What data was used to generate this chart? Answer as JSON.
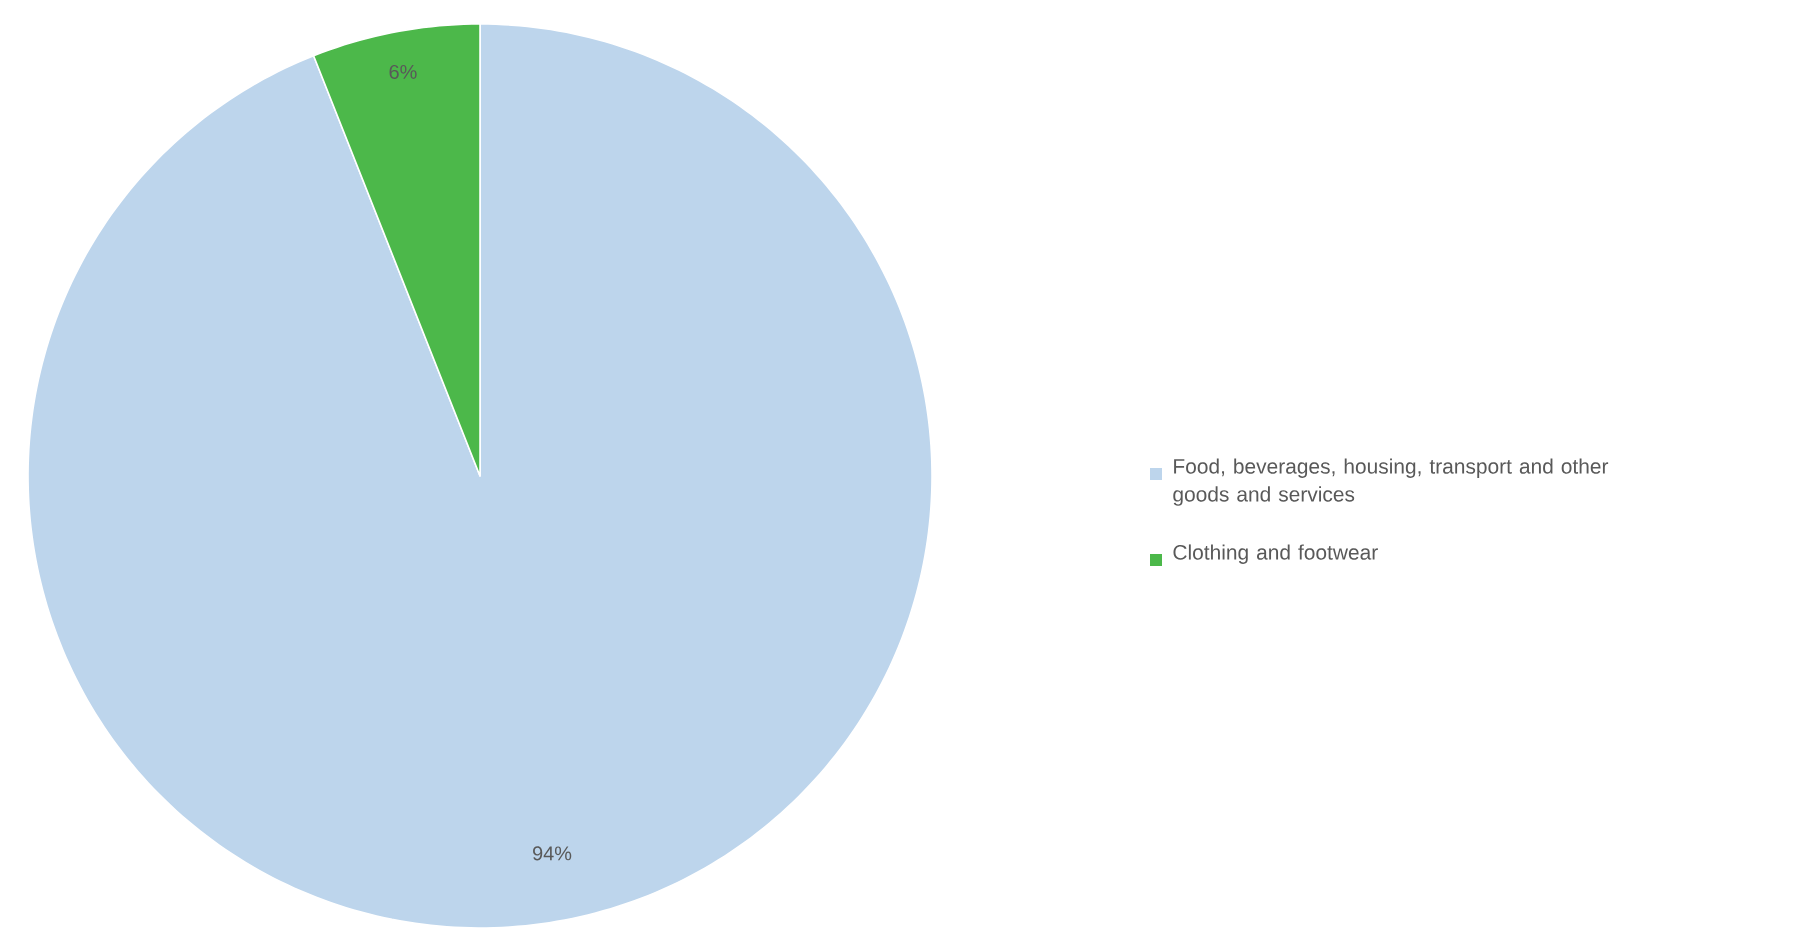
{
  "chart_data": {
    "type": "pie",
    "categories": [
      "Food, beverages, housing, transport and other goods and services",
      "Clothing and footwear"
    ],
    "values": [
      94,
      6
    ],
    "colors": [
      "#bdd5ec",
      "#4cb84a"
    ],
    "value_labels": [
      "94%",
      "6%"
    ],
    "legend": "right"
  }
}
